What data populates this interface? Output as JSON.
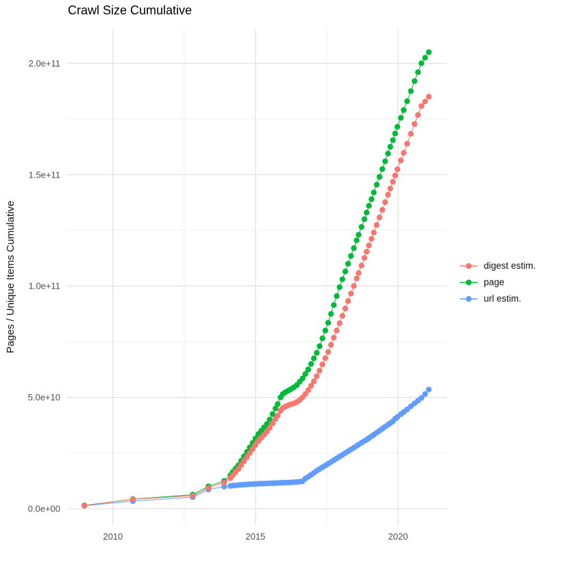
{
  "title": "Crawl Size Cumulative",
  "y_axis": {
    "label": "Pages / Unique Items Cumulative",
    "ticks": [
      {
        "value_e9": 0,
        "label": "0.0e+00"
      },
      {
        "value_e9": 50,
        "label": "5.0e+10"
      },
      {
        "value_e9": 100,
        "label": "1.0e+11"
      },
      {
        "value_e9": 150,
        "label": "1.5e+11"
      },
      {
        "value_e9": 200,
        "label": "2.0e+11"
      }
    ],
    "minor_ticks_e9": [
      25,
      75,
      125,
      175
    ]
  },
  "x_axis": {
    "ticks": [
      {
        "year": 2010,
        "label": "2010"
      },
      {
        "year": 2015,
        "label": "2015"
      },
      {
        "year": 2020,
        "label": "2020"
      }
    ],
    "minor_ticks_years": [
      2012.5,
      2017.5
    ]
  },
  "legend": {
    "items": [
      {
        "series": "digest estim.",
        "label": "digest estim.",
        "color": "#F8766D"
      },
      {
        "series": "page",
        "label": "page",
        "color": "#00BA38"
      },
      {
        "series": "url estim.",
        "label": "url estim.",
        "color": "#619CFF"
      }
    ]
  },
  "grid": {
    "major_color": "#E2E2E2",
    "minor_color": "#EDEDED"
  },
  "chart_data": {
    "type": "scatter",
    "title": "Crawl Size Cumulative",
    "xlabel": "",
    "ylabel": "Pages / Unique Items Cumulative",
    "x_unit": "decimal year",
    "y_unit": "items (values below stored in billions, multiply by 1e9)",
    "x_domain": [
      2008.37,
      2021.71
    ],
    "y_domain_e9": [
      -7.4,
      215.5
    ],
    "legend_position": "right",
    "grid": "major+minor",
    "draw_order": [
      "page",
      "url estim.",
      "digest estim."
    ],
    "series": [
      {
        "name": "page",
        "color": "#00BA38",
        "points": [
          [
            2009.0,
            1.5
          ],
          [
            2010.7,
            4.3
          ],
          [
            2012.8,
            6.3
          ],
          [
            2013.35,
            10
          ],
          [
            2013.9,
            12.5
          ],
          [
            2014.12,
            15
          ],
          [
            2014.2,
            16.5
          ],
          [
            2014.3,
            18
          ],
          [
            2014.4,
            19.5
          ],
          [
            2014.5,
            21.5
          ],
          [
            2014.6,
            23.5
          ],
          [
            2014.7,
            25.5
          ],
          [
            2014.8,
            27.5
          ],
          [
            2014.9,
            29.5
          ],
          [
            2015.0,
            31.5
          ],
          [
            2015.1,
            33.5
          ],
          [
            2015.2,
            35
          ],
          [
            2015.3,
            36.5
          ],
          [
            2015.4,
            38
          ],
          [
            2015.5,
            40
          ],
          [
            2015.6,
            42.5
          ],
          [
            2015.7,
            45
          ],
          [
            2015.78,
            47
          ],
          [
            2015.88,
            50
          ],
          [
            2015.96,
            51.5
          ],
          [
            2016.05,
            52.3
          ],
          [
            2016.15,
            53
          ],
          [
            2016.25,
            53.7
          ],
          [
            2016.35,
            54.5
          ],
          [
            2016.45,
            55.5
          ],
          [
            2016.55,
            57
          ],
          [
            2016.65,
            58.5
          ],
          [
            2016.75,
            60.5
          ],
          [
            2016.85,
            62.5
          ],
          [
            2016.95,
            65
          ],
          [
            2017.05,
            67.5
          ],
          [
            2017.15,
            70
          ],
          [
            2017.25,
            73
          ],
          [
            2017.35,
            76.5
          ],
          [
            2017.45,
            80
          ],
          [
            2017.55,
            83.5
          ],
          [
            2017.65,
            87.5
          ],
          [
            2017.75,
            91.5
          ],
          [
            2017.85,
            95.5
          ],
          [
            2017.95,
            99.5
          ],
          [
            2018.05,
            103
          ],
          [
            2018.15,
            106.5
          ],
          [
            2018.25,
            110
          ],
          [
            2018.35,
            113.5
          ],
          [
            2018.45,
            117
          ],
          [
            2018.55,
            120.5
          ],
          [
            2018.62,
            123
          ],
          [
            2018.72,
            126.5
          ],
          [
            2018.82,
            130
          ],
          [
            2018.9,
            133
          ],
          [
            2018.98,
            136
          ],
          [
            2019.07,
            139
          ],
          [
            2019.15,
            142
          ],
          [
            2019.25,
            145.5
          ],
          [
            2019.35,
            149
          ],
          [
            2019.45,
            152.5
          ],
          [
            2019.55,
            156
          ],
          [
            2019.65,
            159.5
          ],
          [
            2019.73,
            162.5
          ],
          [
            2019.82,
            165.5
          ],
          [
            2019.9,
            168.5
          ],
          [
            2019.98,
            171.5
          ],
          [
            2020.1,
            175.5
          ],
          [
            2020.2,
            179
          ],
          [
            2020.32,
            183
          ],
          [
            2020.45,
            187.5
          ],
          [
            2020.58,
            192
          ],
          [
            2020.7,
            196
          ],
          [
            2020.82,
            200
          ],
          [
            2020.95,
            202.5
          ],
          [
            2021.08,
            205
          ]
        ]
      },
      {
        "name": "url estim.",
        "color": "#619CFF",
        "points": [
          [
            2009.0,
            1.3
          ],
          [
            2010.7,
            3.4
          ],
          [
            2012.8,
            5.2
          ],
          [
            2013.35,
            8.6
          ],
          [
            2013.9,
            9.9
          ],
          [
            2014.12,
            10.2
          ],
          [
            2014.2,
            10.35
          ],
          [
            2014.3,
            10.5
          ],
          [
            2014.4,
            10.6
          ],
          [
            2014.5,
            10.7
          ],
          [
            2014.6,
            10.8
          ],
          [
            2014.7,
            10.9
          ],
          [
            2014.8,
            11
          ],
          [
            2014.9,
            11.05
          ],
          [
            2015.0,
            11.1
          ],
          [
            2015.1,
            11.2
          ],
          [
            2015.2,
            11.25
          ],
          [
            2015.3,
            11.3
          ],
          [
            2015.4,
            11.35
          ],
          [
            2015.5,
            11.4
          ],
          [
            2015.6,
            11.45
          ],
          [
            2015.7,
            11.5
          ],
          [
            2015.78,
            11.55
          ],
          [
            2015.88,
            11.6
          ],
          [
            2015.96,
            11.65
          ],
          [
            2016.05,
            11.7
          ],
          [
            2016.15,
            11.75
          ],
          [
            2016.25,
            11.8
          ],
          [
            2016.35,
            11.9
          ],
          [
            2016.45,
            12
          ],
          [
            2016.55,
            12.1
          ],
          [
            2016.65,
            12.3
          ],
          [
            2016.75,
            13.5
          ],
          [
            2016.85,
            14.3
          ],
          [
            2016.95,
            15.2
          ],
          [
            2017.05,
            16.1
          ],
          [
            2017.15,
            17
          ],
          [
            2017.25,
            17.8
          ],
          [
            2017.35,
            18.6
          ],
          [
            2017.45,
            19.4
          ],
          [
            2017.55,
            20.2
          ],
          [
            2017.65,
            21
          ],
          [
            2017.75,
            21.8
          ],
          [
            2017.85,
            22.6
          ],
          [
            2017.95,
            23.4
          ],
          [
            2018.05,
            24.2
          ],
          [
            2018.15,
            25
          ],
          [
            2018.25,
            25.8
          ],
          [
            2018.35,
            26.6
          ],
          [
            2018.45,
            27.4
          ],
          [
            2018.55,
            28.2
          ],
          [
            2018.62,
            28.8
          ],
          [
            2018.72,
            29.6
          ],
          [
            2018.82,
            30.4
          ],
          [
            2018.9,
            31
          ],
          [
            2018.98,
            31.7
          ],
          [
            2019.07,
            32.5
          ],
          [
            2019.15,
            33.2
          ],
          [
            2019.25,
            34.1
          ],
          [
            2019.35,
            35
          ],
          [
            2019.45,
            35.9
          ],
          [
            2019.55,
            36.8
          ],
          [
            2019.65,
            37.7
          ],
          [
            2019.73,
            38.4
          ],
          [
            2019.82,
            39.2
          ],
          [
            2019.9,
            40.4
          ],
          [
            2019.98,
            41.2
          ],
          [
            2020.1,
            42.4
          ],
          [
            2020.2,
            43.4
          ],
          [
            2020.32,
            44.6
          ],
          [
            2020.45,
            46
          ],
          [
            2020.58,
            47.3
          ],
          [
            2020.7,
            48.5
          ],
          [
            2020.82,
            49.7
          ],
          [
            2020.95,
            51.5
          ],
          [
            2021.08,
            53.5
          ]
        ]
      },
      {
        "name": "digest estim.",
        "color": "#F8766D",
        "points": [
          [
            2009.0,
            1.4
          ],
          [
            2010.7,
            4.2
          ],
          [
            2012.8,
            5.8
          ],
          [
            2013.35,
            9.3
          ],
          [
            2013.9,
            11.7
          ],
          [
            2014.12,
            13.7
          ],
          [
            2014.2,
            15
          ],
          [
            2014.3,
            16.4
          ],
          [
            2014.4,
            17.8
          ],
          [
            2014.5,
            19.6
          ],
          [
            2014.6,
            21.4
          ],
          [
            2014.7,
            23.2
          ],
          [
            2014.8,
            25
          ],
          [
            2014.9,
            26.8
          ],
          [
            2015.0,
            28.6
          ],
          [
            2015.1,
            30.4
          ],
          [
            2015.2,
            31.8
          ],
          [
            2015.3,
            33.2
          ],
          [
            2015.4,
            34.6
          ],
          [
            2015.5,
            36.3
          ],
          [
            2015.6,
            38.3
          ],
          [
            2015.7,
            40.3
          ],
          [
            2015.78,
            41.8
          ],
          [
            2015.88,
            44
          ],
          [
            2015.96,
            45.2
          ],
          [
            2016.05,
            45.9
          ],
          [
            2016.15,
            46.4
          ],
          [
            2016.25,
            46.9
          ],
          [
            2016.35,
            47.3
          ],
          [
            2016.45,
            47.9
          ],
          [
            2016.55,
            48.8
          ],
          [
            2016.65,
            50
          ],
          [
            2016.75,
            51.5
          ],
          [
            2016.85,
            53.2
          ],
          [
            2016.95,
            55.2
          ],
          [
            2017.05,
            57.2
          ],
          [
            2017.15,
            59.5
          ],
          [
            2017.25,
            62
          ],
          [
            2017.35,
            64.8
          ],
          [
            2017.45,
            67.6
          ],
          [
            2017.55,
            70.4
          ],
          [
            2017.65,
            73.6
          ],
          [
            2017.75,
            76.8
          ],
          [
            2017.85,
            80
          ],
          [
            2017.95,
            83.3
          ],
          [
            2018.05,
            86.6
          ],
          [
            2018.15,
            89.9
          ],
          [
            2018.25,
            93.2
          ],
          [
            2018.35,
            96.6
          ],
          [
            2018.45,
            100
          ],
          [
            2018.55,
            103.4
          ],
          [
            2018.62,
            105.8
          ],
          [
            2018.72,
            109.2
          ],
          [
            2018.82,
            112.6
          ],
          [
            2018.9,
            115.4
          ],
          [
            2018.98,
            118.2
          ],
          [
            2019.07,
            121.2
          ],
          [
            2019.15,
            124
          ],
          [
            2019.25,
            127.4
          ],
          [
            2019.35,
            130.8
          ],
          [
            2019.45,
            134.2
          ],
          [
            2019.55,
            137.6
          ],
          [
            2019.65,
            141
          ],
          [
            2019.73,
            143.8
          ],
          [
            2019.82,
            146.8
          ],
          [
            2019.9,
            149.6
          ],
          [
            2019.98,
            152.4
          ],
          [
            2020.1,
            156.4
          ],
          [
            2020.2,
            159.8
          ],
          [
            2020.32,
            163.9
          ],
          [
            2020.45,
            168.3
          ],
          [
            2020.58,
            172.7
          ],
          [
            2020.7,
            176.8
          ],
          [
            2020.82,
            180.8
          ],
          [
            2020.95,
            182.8
          ],
          [
            2021.08,
            185
          ]
        ]
      }
    ]
  }
}
